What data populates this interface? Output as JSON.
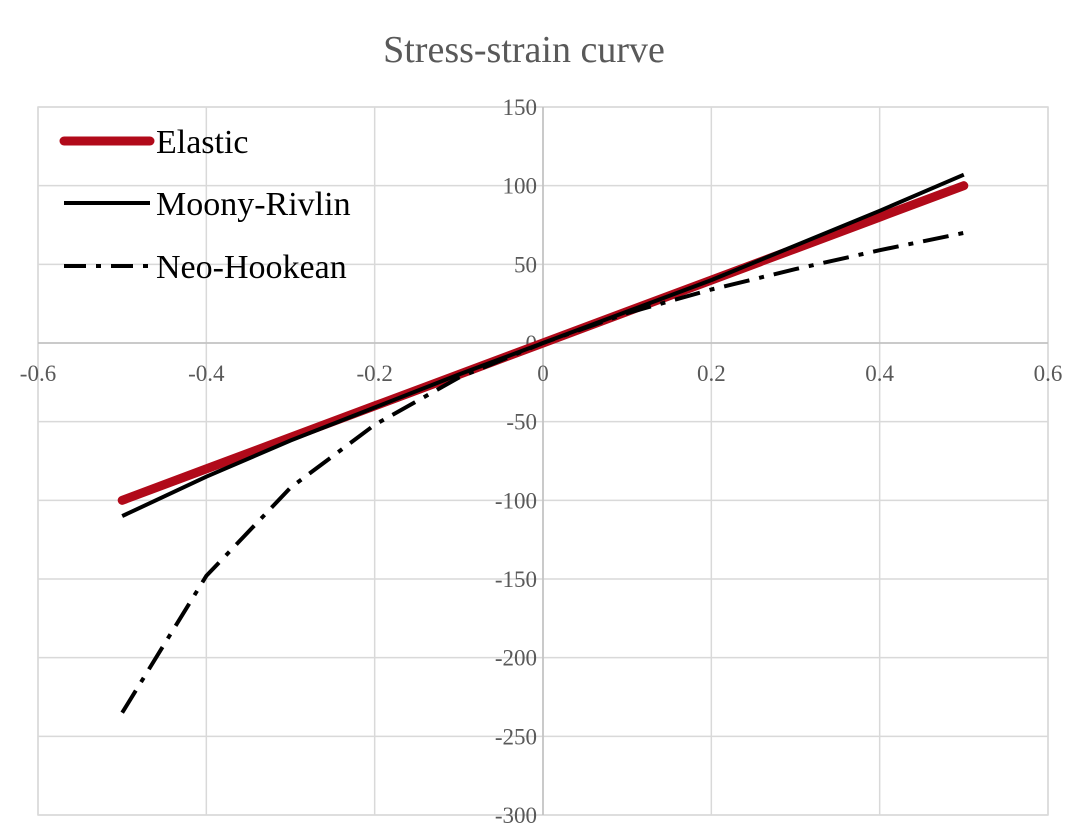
{
  "chart_data": {
    "type": "line",
    "title": "Stress-strain curve",
    "xlabel": "",
    "ylabel": "",
    "xlim": [
      -0.6,
      0.6
    ],
    "ylim": [
      -300,
      150
    ],
    "x_ticks": [
      -0.6,
      -0.4,
      -0.2,
      0,
      0.2,
      0.4,
      0.6
    ],
    "x_tick_labels": [
      "-0.6",
      "-0.4",
      "-0.2",
      "0",
      "0.2",
      "0.4",
      "0.6"
    ],
    "y_ticks": [
      -300,
      -250,
      -200,
      -150,
      -100,
      -50,
      0,
      50,
      100,
      150
    ],
    "y_tick_labels": [
      "-300",
      "-250",
      "-200",
      "-150",
      "-100",
      "-50",
      "0",
      "50",
      "100",
      "150"
    ],
    "grid": true,
    "legend_position": "top-left",
    "series": [
      {
        "name": "Elastic",
        "color": "#b10a1a",
        "style": "thick-solid",
        "x": [
          -0.5,
          -0.4,
          -0.3,
          -0.2,
          -0.1,
          0,
          0.1,
          0.2,
          0.3,
          0.4,
          0.5
        ],
        "y": [
          -100,
          -80,
          -60,
          -40,
          -20,
          0,
          20,
          40,
          60,
          80,
          100
        ]
      },
      {
        "name": "Moony-Rivlin",
        "color": "#000000",
        "style": "solid",
        "x": [
          -0.5,
          -0.4,
          -0.3,
          -0.2,
          -0.1,
          0,
          0.1,
          0.2,
          0.3,
          0.4,
          0.5
        ],
        "y": [
          -110,
          -85,
          -62,
          -41,
          -20,
          0,
          20,
          40,
          62,
          84,
          107
        ]
      },
      {
        "name": "Neo-Hookean",
        "color": "#000000",
        "style": "dash-dot",
        "x": [
          -0.5,
          -0.4,
          -0.3,
          -0.2,
          -0.1,
          0,
          0.1,
          0.2,
          0.3,
          0.4,
          0.5
        ],
        "y": [
          -235,
          -148,
          -92,
          -52,
          -22,
          0,
          19,
          34,
          47,
          59,
          70
        ]
      }
    ]
  }
}
